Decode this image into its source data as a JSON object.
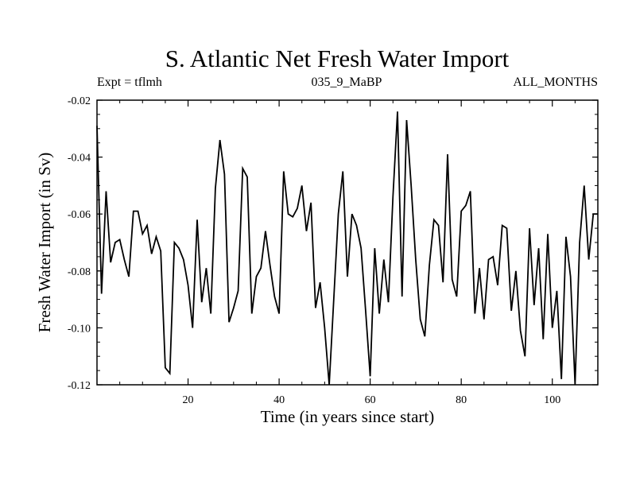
{
  "chart_data": {
    "type": "line",
    "title": "S. Atlantic Net Fresh Water Import",
    "subtitle_left": "Expt = tflmh",
    "subtitle_center": "035_9_MaBP",
    "subtitle_right": "ALL_MONTHS",
    "xlabel": "Time (in years since start)",
    "ylabel": "Fresh Water Import (in Sv)",
    "xlim": [
      0,
      110
    ],
    "ylim": [
      -0.12,
      -0.02
    ],
    "xticks": [
      20,
      40,
      60,
      80,
      100
    ],
    "yticks": [
      -0.12,
      -0.1,
      -0.08,
      -0.06,
      -0.04,
      -0.02
    ],
    "xtick_labels": [
      "20",
      "40",
      "60",
      "80",
      "100"
    ],
    "ytick_labels": [
      "-0.12",
      "-0.10",
      "-0.08",
      "-0.06",
      "-0.04",
      "-0.02"
    ],
    "series": [
      {
        "name": "Net Fresh Water Import",
        "x": [
          0,
          1,
          2,
          3,
          4,
          5,
          6,
          7,
          8,
          9,
          10,
          11,
          12,
          13,
          14,
          15,
          16,
          17,
          18,
          19,
          20,
          21,
          22,
          23,
          24,
          25,
          26,
          27,
          28,
          29,
          30,
          31,
          32,
          33,
          34,
          35,
          36,
          37,
          38,
          39,
          40,
          41,
          42,
          43,
          44,
          45,
          46,
          47,
          48,
          49,
          50,
          51,
          52,
          53,
          54,
          55,
          56,
          57,
          58,
          59,
          60,
          61,
          62,
          63,
          64,
          65,
          66,
          67,
          68,
          69,
          70,
          71,
          72,
          73,
          74,
          75,
          76,
          77,
          78,
          79,
          80,
          81,
          82,
          83,
          84,
          85,
          86,
          87,
          88,
          89,
          90,
          91,
          92,
          93,
          94,
          95,
          96,
          97,
          98,
          99,
          100,
          101,
          102,
          103,
          104,
          105,
          106,
          107,
          108,
          109,
          110
        ],
        "values": [
          -0.029,
          -0.088,
          -0.052,
          -0.077,
          -0.07,
          -0.069,
          -0.076,
          -0.082,
          -0.059,
          -0.059,
          -0.067,
          -0.064,
          -0.074,
          -0.068,
          -0.073,
          -0.114,
          -0.116,
          -0.07,
          -0.072,
          -0.076,
          -0.085,
          -0.1,
          -0.062,
          -0.091,
          -0.079,
          -0.095,
          -0.051,
          -0.034,
          -0.046,
          -0.098,
          -0.093,
          -0.087,
          -0.044,
          -0.047,
          -0.095,
          -0.082,
          -0.079,
          -0.066,
          -0.078,
          -0.089,
          -0.095,
          -0.045,
          -0.06,
          -0.061,
          -0.058,
          -0.05,
          -0.066,
          -0.056,
          -0.093,
          -0.084,
          -0.1,
          -0.12,
          -0.09,
          -0.06,
          -0.045,
          -0.082,
          -0.06,
          -0.064,
          -0.072,
          -0.094,
          -0.117,
          -0.072,
          -0.095,
          -0.076,
          -0.091,
          -0.054,
          -0.024,
          -0.089,
          -0.027,
          -0.05,
          -0.076,
          -0.097,
          -0.103,
          -0.078,
          -0.062,
          -0.064,
          -0.084,
          -0.039,
          -0.083,
          -0.089,
          -0.059,
          -0.057,
          -0.052,
          -0.095,
          -0.079,
          -0.097,
          -0.076,
          -0.075,
          -0.085,
          -0.064,
          -0.065,
          -0.094,
          -0.08,
          -0.101,
          -0.11,
          -0.065,
          -0.092,
          -0.072,
          -0.104,
          -0.067,
          -0.1,
          -0.087,
          -0.118,
          -0.068,
          -0.082,
          -0.12,
          -0.07,
          -0.05,
          -0.076,
          -0.06,
          -0.06
        ]
      }
    ]
  }
}
